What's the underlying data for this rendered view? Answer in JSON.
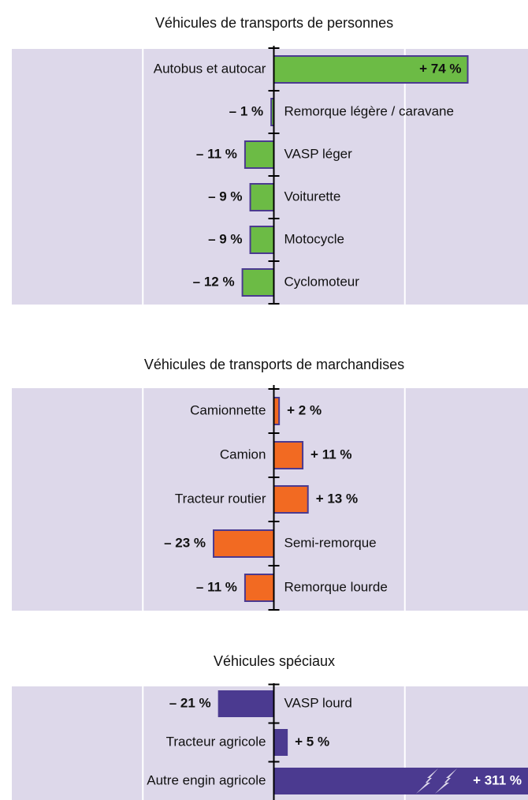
{
  "chart_data": [
    {
      "type": "bar",
      "title": "Véhicules de transports de personnes",
      "categories": [
        "Autobus et autocar",
        "Remorque légère / caravane",
        "VASP léger",
        "Voiturette",
        "Motocycle",
        "Cyclomoteur"
      ],
      "values": [
        74,
        -1,
        -11,
        -9,
        -9,
        -12
      ],
      "value_labels": [
        "+ 74 %",
        "– 1 %",
        "– 11 %",
        "– 9 %",
        "– 9 %",
        "– 12 %"
      ],
      "color": "#6cbb45",
      "xlim": [
        -100,
        97
      ],
      "xticks": [
        -50,
        50
      ],
      "grid": true
    },
    {
      "type": "bar",
      "title": "Véhicules de transports de marchandises",
      "categories": [
        "Camionnette",
        "Camion",
        "Tracteur routier",
        "Semi-remorque",
        "Remorque lourde"
      ],
      "values": [
        2,
        11,
        13,
        -23,
        -11
      ],
      "value_labels": [
        "+ 2 %",
        "+ 11 %",
        "+ 13 %",
        "– 23 %",
        "– 11 %"
      ],
      "color": "#f26a22",
      "xlim": [
        -100,
        97
      ],
      "xticks": [
        -50,
        50
      ],
      "grid": true
    },
    {
      "type": "bar",
      "title": "Véhicules spéciaux",
      "categories": [
        "VASP lourd",
        "Tracteur agricole",
        "Autre engin agricole"
      ],
      "values": [
        -21,
        5,
        311
      ],
      "value_labels": [
        "– 21 %",
        "+ 5 %",
        "+ 311 %"
      ],
      "color": "#4b3a90",
      "xlim": [
        -100,
        97
      ],
      "xticks": [
        -50,
        50
      ],
      "grid": true
    }
  ]
}
